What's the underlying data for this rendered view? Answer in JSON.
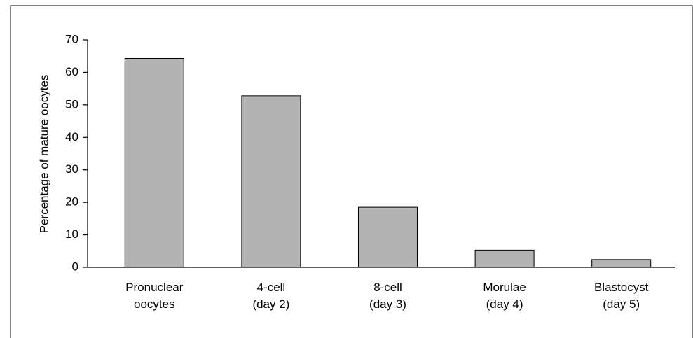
{
  "chart_data": {
    "type": "bar",
    "y_label": "Percentage of mature oocytes",
    "categories": [
      "Pronuclear oocytes",
      "4-cell (day 2)",
      "8-cell (day 3)",
      "Morulae (day 4)",
      "Blastocyst (day 5)"
    ],
    "values": [
      64.3,
      52.8,
      18.5,
      5.3,
      2.4
    ],
    "color": "#b3b3b3",
    "ylim": [
      0,
      70
    ],
    "yticks": [
      0,
      10,
      20,
      30,
      40,
      50,
      60,
      70
    ],
    "grid": false
  }
}
